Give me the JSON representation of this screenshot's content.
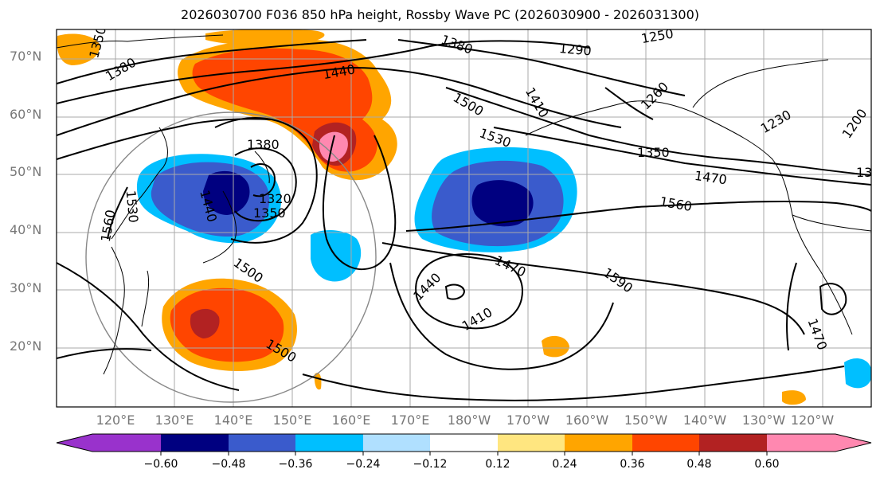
{
  "title": "2026030700 F036 850 hPa height, Rossby Wave PC (2026030900 - 2026031300)",
  "lat_labels": [
    "70°N",
    "60°N",
    "50°N",
    "40°N",
    "30°N",
    "20°N"
  ],
  "lon_labels": [
    "120°E",
    "130°E",
    "140°E",
    "150°E",
    "160°E",
    "170°E",
    "180°W",
    "170°W",
    "160°W",
    "150°W",
    "140°W",
    "130°W",
    "120°W"
  ],
  "colorbar": {
    "ticks": [
      "−0.60",
      "−0.48",
      "−0.36",
      "−0.24",
      "−0.12",
      "0.12",
      "0.24",
      "0.36",
      "0.48",
      "0.60"
    ],
    "colors": [
      "#9932cc",
      "#000080",
      "#3a5bcc",
      "#00bfff",
      "#b0e0ff",
      "#ffffff",
      "#ffe680",
      "#ffa500",
      "#ff4500",
      "#b22222",
      "#ff88b0"
    ]
  },
  "contour_labels": [
    "1350",
    "1380",
    "1440",
    "1380",
    "1290",
    "1250",
    "1410",
    "1260",
    "1500",
    "1230",
    "1200",
    "1530",
    "1350",
    "1380",
    "1470",
    "1320",
    "1350",
    "1440",
    "1530",
    "1560",
    "1560",
    "1500",
    "1440",
    "1470",
    "1590",
    "1410",
    "1500",
    "1470",
    "13"
  ],
  "map_features": {
    "height_contours_hpa": "850",
    "variables": [
      "geopotential height (m)",
      "Rossby Wave PC anomaly (shaded)"
    ],
    "gridlines": true,
    "range_ring": true
  }
}
